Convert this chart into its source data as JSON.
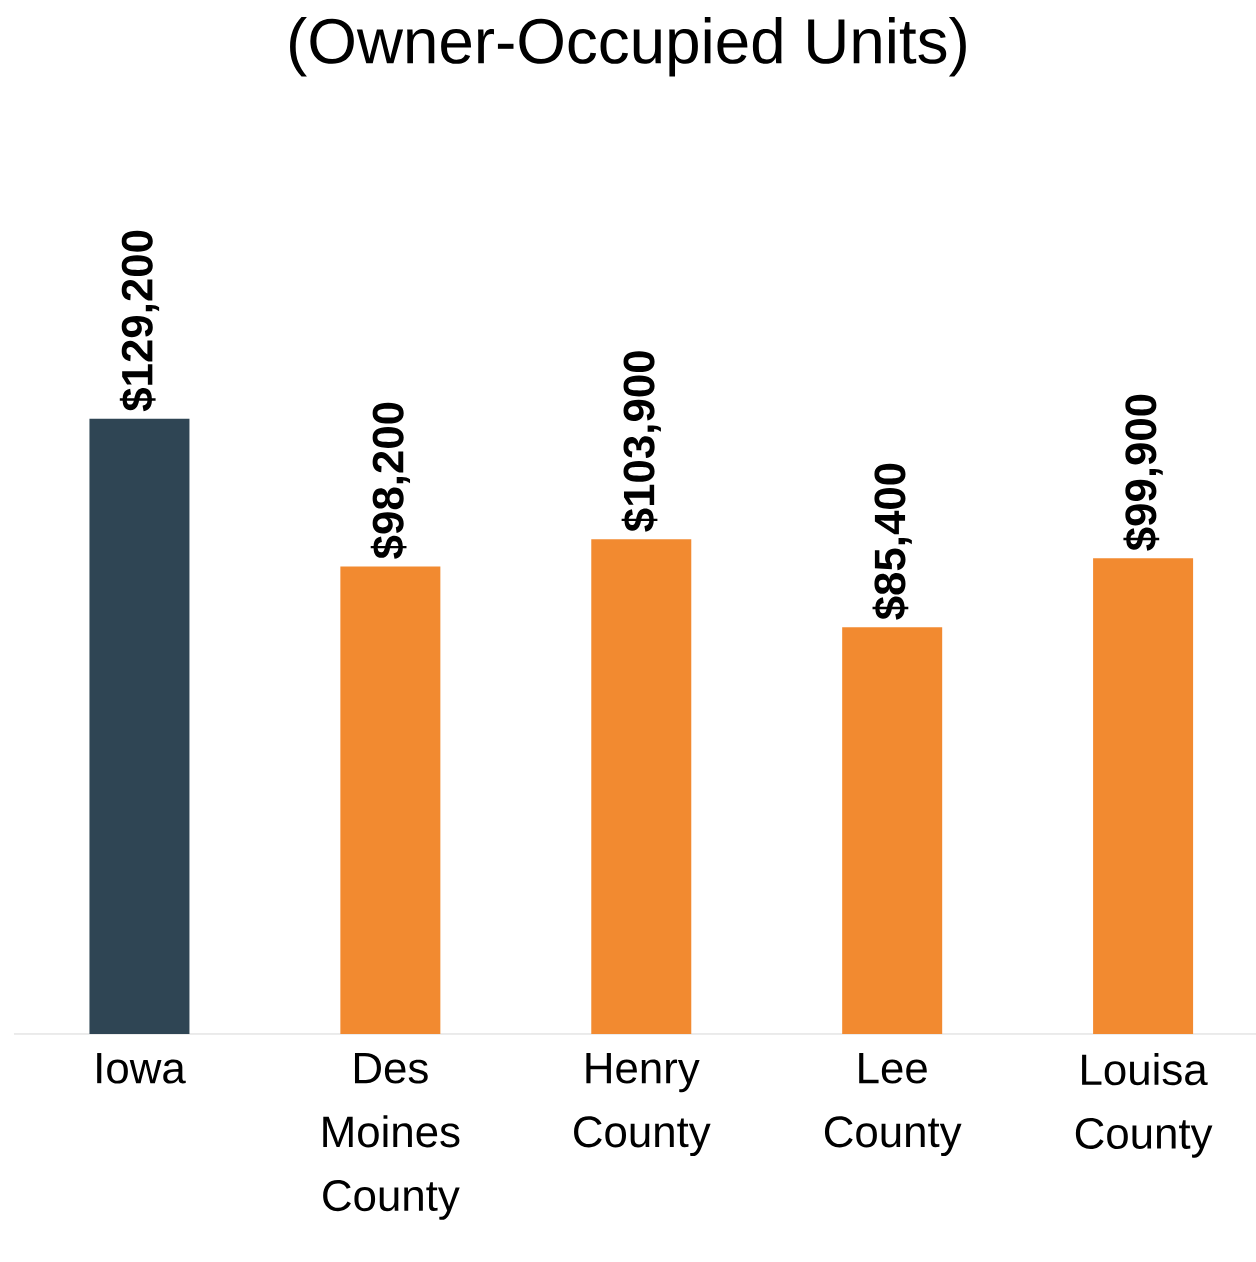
{
  "chart_data": {
    "type": "bar",
    "title": "(Owner-Occupied Units)",
    "categories": [
      "Iowa",
      "Des Moines County",
      "Henry County",
      "Lee County",
      "Louisa County"
    ],
    "values": [
      129200,
      98200,
      103900,
      85400,
      99900
    ],
    "colors": [
      "#2f4554",
      "#f28a30",
      "#f28a30",
      "#f28a30",
      "#f28a30"
    ],
    "value_labels": [
      "$129,200",
      "$98,200",
      "$103,900",
      "$85,400",
      "$99,900"
    ]
  }
}
